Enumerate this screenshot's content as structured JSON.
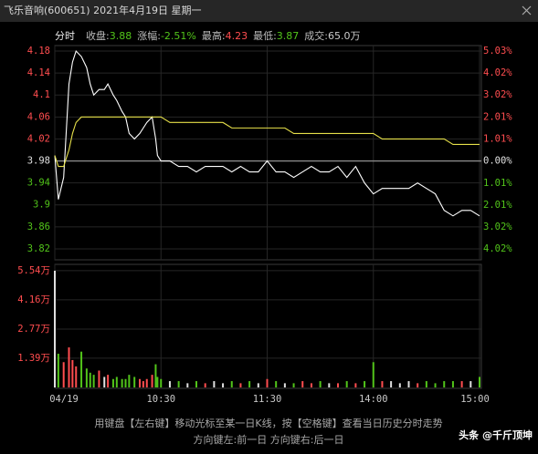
{
  "header": {
    "title": "飞乐音响(600651) 2021年4月19日 星期一",
    "mode": "分时",
    "stats": [
      {
        "label": "收盘:",
        "value": "3.88",
        "color": "#52c41a"
      },
      {
        "label": "涨幅:",
        "value": "-2.51%",
        "color": "#52c41a"
      },
      {
        "label": "最高:",
        "value": "4.23",
        "color": "#ff4d4f"
      },
      {
        "label": "最低:",
        "value": "3.87",
        "color": "#52c41a"
      },
      {
        "label": "成交:",
        "value": "65.0万",
        "color": "#cccccc"
      }
    ]
  },
  "chart_data": [
    {
      "type": "line",
      "x": [
        0,
        2,
        5,
        8,
        10,
        12,
        15,
        18,
        20,
        22,
        25,
        28,
        30,
        33,
        35,
        38,
        40,
        42,
        45,
        48,
        50,
        52,
        55,
        57,
        58,
        60,
        65,
        70,
        75,
        80,
        85,
        90,
        95,
        100,
        105,
        110,
        115,
        120,
        125,
        130,
        135,
        140,
        145,
        150,
        155,
        160,
        165,
        170,
        175,
        180,
        185,
        190,
        195,
        200,
        205,
        210,
        215,
        220,
        225,
        230,
        235,
        240
      ],
      "xlim": [
        0,
        240
      ],
      "series": [
        {
          "color": "#ffffff",
          "values": [
            3.99,
            3.91,
            3.95,
            4.12,
            4.16,
            4.18,
            4.17,
            4.15,
            4.12,
            4.1,
            4.11,
            4.11,
            4.12,
            4.1,
            4.09,
            4.07,
            4.06,
            4.03,
            4.02,
            4.03,
            4.04,
            4.05,
            4.06,
            4.02,
            3.99,
            3.98,
            3.98,
            3.97,
            3.97,
            3.96,
            3.97,
            3.97,
            3.97,
            3.96,
            3.97,
            3.96,
            3.96,
            3.98,
            3.96,
            3.96,
            3.95,
            3.96,
            3.97,
            3.96,
            3.96,
            3.97,
            3.95,
            3.97,
            3.94,
            3.92,
            3.93,
            3.93,
            3.93,
            3.93,
            3.94,
            3.93,
            3.92,
            3.89,
            3.88,
            3.89,
            3.89,
            3.88
          ]
        },
        {
          "color": "#e6e04a",
          "values": [
            3.99,
            3.97,
            3.97,
            4.0,
            4.03,
            4.05,
            4.06,
            4.06,
            4.06,
            4.06,
            4.06,
            4.06,
            4.06,
            4.06,
            4.06,
            4.06,
            4.06,
            4.06,
            4.06,
            4.06,
            4.06,
            4.06,
            4.06,
            4.06,
            4.06,
            4.06,
            4.05,
            4.05,
            4.05,
            4.05,
            4.05,
            4.05,
            4.05,
            4.04,
            4.04,
            4.04,
            4.04,
            4.04,
            4.04,
            4.04,
            4.03,
            4.03,
            4.03,
            4.03,
            4.03,
            4.03,
            4.03,
            4.03,
            4.03,
            4.03,
            4.02,
            4.02,
            4.02,
            4.02,
            4.02,
            4.02,
            4.02,
            4.02,
            4.01,
            4.01,
            4.01,
            4.01
          ]
        }
      ],
      "ylim": [
        3.8,
        4.19
      ],
      "yticks": [
        4.18,
        4.14,
        4.1,
        4.06,
        4.02,
        3.98,
        3.94,
        3.9,
        3.86,
        3.82
      ],
      "y2lim": [
        -4.52,
        5.28
      ],
      "y2ticks": [
        {
          "value": 5.03,
          "label": "5.03%"
        },
        {
          "value": 4.02,
          "label": "4.02%"
        },
        {
          "value": 3.02,
          "label": "3.02%"
        },
        {
          "value": 2.01,
          "label": "2.01%"
        },
        {
          "value": 1.01,
          "label": "1.01%"
        },
        {
          "value": 0,
          "label": "0.00%"
        },
        {
          "value": -1.01,
          "label": "1.01%"
        },
        {
          "value": -2.01,
          "label": "2.01%"
        },
        {
          "value": -3.02,
          "label": "3.02%"
        },
        {
          "value": -4.02,
          "label": "4.02%"
        }
      ],
      "up_color": "#ff4d4f",
      "down_color": "#52c41a",
      "grid": true
    },
    {
      "type": "bar",
      "x": [
        0,
        2,
        5,
        8,
        10,
        12,
        15,
        18,
        20,
        22,
        25,
        28,
        30,
        33,
        35,
        38,
        40,
        42,
        45,
        48,
        50,
        52,
        55,
        57,
        58,
        60,
        65,
        70,
        75,
        80,
        85,
        90,
        95,
        100,
        105,
        110,
        115,
        120,
        125,
        130,
        135,
        140,
        145,
        150,
        155,
        160,
        165,
        170,
        175,
        180,
        185,
        190,
        195,
        200,
        205,
        210,
        215,
        220,
        225,
        230,
        235,
        240
      ],
      "xlim": [
        0,
        240
      ],
      "values": [
        5.54,
        1.6,
        1.2,
        1.9,
        1.3,
        1.0,
        1.7,
        0.9,
        0.7,
        0.6,
        0.8,
        0.5,
        0.6,
        0.4,
        0.5,
        0.4,
        0.4,
        0.6,
        0.5,
        0.4,
        0.3,
        0.4,
        0.6,
        1.1,
        0.5,
        0.4,
        0.3,
        0.3,
        0.2,
        0.3,
        0.2,
        0.3,
        0.2,
        0.3,
        0.2,
        0.3,
        0.2,
        0.4,
        0.3,
        0.2,
        0.2,
        0.3,
        0.2,
        0.3,
        0.2,
        0.2,
        0.3,
        0.2,
        0.3,
        1.2,
        0.3,
        0.3,
        0.2,
        0.3,
        0.2,
        0.3,
        0.2,
        0.3,
        0.3,
        0.3,
        0.3,
        0.5
      ],
      "ylim": [
        0,
        5.84
      ],
      "yticks": [
        {
          "value": 5.54,
          "label": "5.54万"
        },
        {
          "value": 4.16,
          "label": "4.16万"
        },
        {
          "value": 2.77,
          "label": "2.77万"
        },
        {
          "value": 1.39,
          "label": "1.39万"
        }
      ],
      "xticks": [
        {
          "value": 0,
          "label": "04/19"
        },
        {
          "value": 60,
          "label": "10:30"
        },
        {
          "value": 120,
          "label": "11:30"
        },
        {
          "value": 180,
          "label": "14:00"
        },
        {
          "value": 240,
          "label": "15:00"
        }
      ],
      "grid": true
    }
  ],
  "footer": [
    "用键盘【左右键】移动光标至某一日K线，按【空格键】查看当日历史分时走势",
    "方向键左:前一日    方向键右:后一日"
  ],
  "watermark": "头条 @千斤顶坤"
}
